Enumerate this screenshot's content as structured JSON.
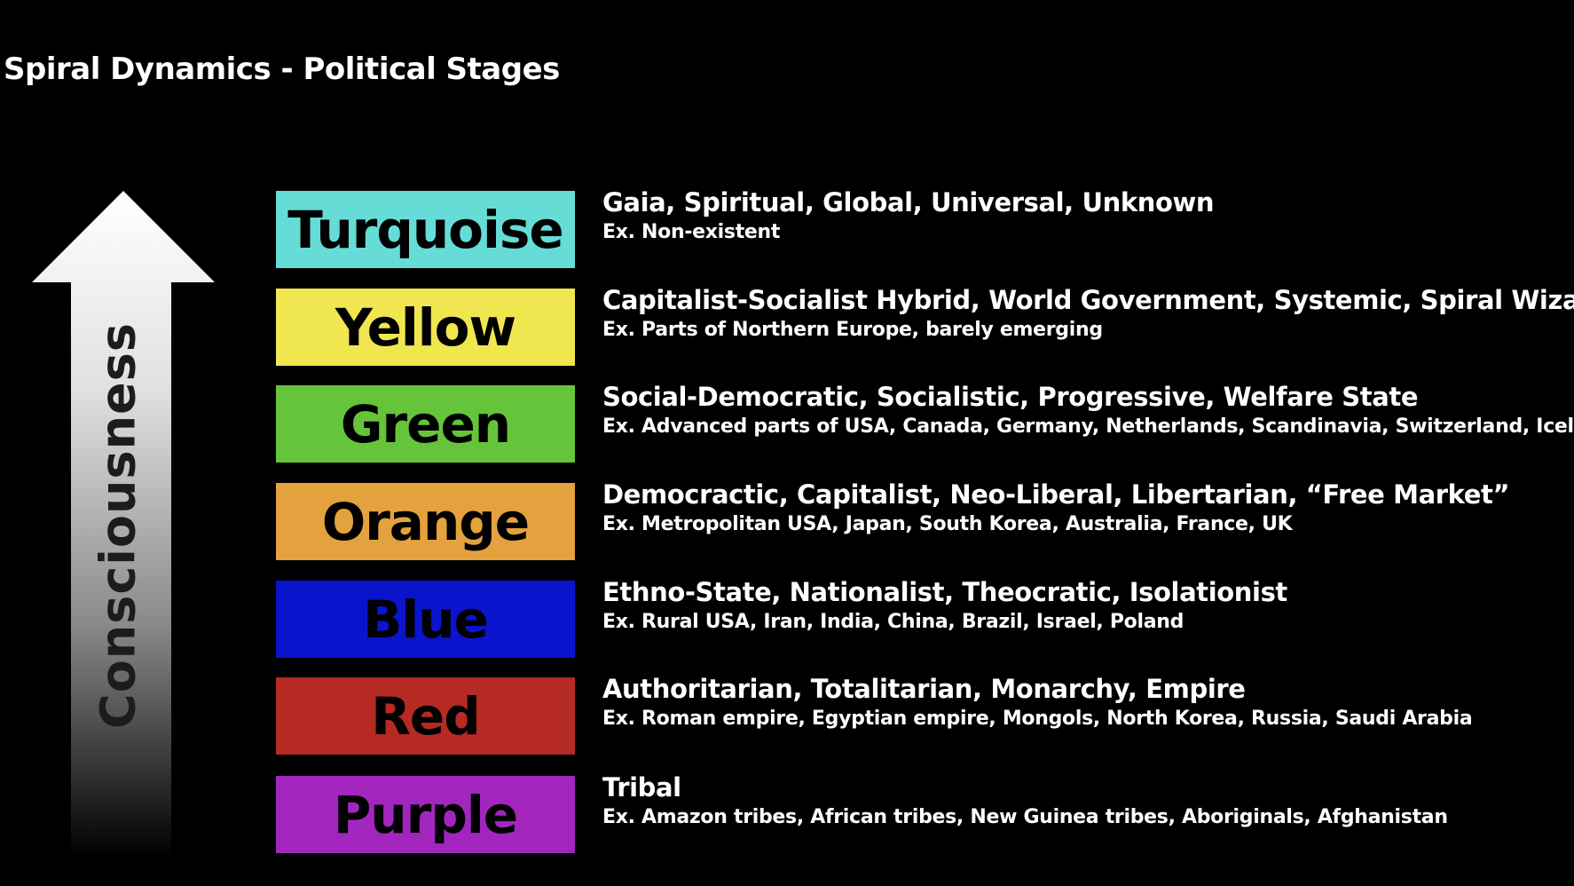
{
  "title": "Spiral Dynamics - Political Stages",
  "axis_label": "Consciousness",
  "stages": [
    {
      "name": "Turquoise",
      "color": "#66dcd6",
      "description": "Gaia, Spiritual, Global, Universal, Unknown",
      "examples": "Ex. Non-existent"
    },
    {
      "name": "Yellow",
      "color": "#f0e64f",
      "description": "Capitalist-Socialist Hybrid, World Government, Systemic, Spiral Wizardry",
      "examples": "Ex. Parts of Northern Europe, barely emerging"
    },
    {
      "name": "Green",
      "color": "#66c43a",
      "description": "Social-Democratic, Socialistic, Progressive, Welfare State",
      "examples": "Ex. Advanced parts of USA, Canada, Germany, Netherlands, Scandinavia, Switzerland, Iceland"
    },
    {
      "name": "Orange",
      "color": "#e3a23d",
      "description": "Democractic, Capitalist, Neo-Liberal, Libertarian, “Free Market”",
      "examples": "Ex. Metropolitan USA, Japan, South Korea, Australia, France, UK"
    },
    {
      "name": "Blue",
      "color": "#0a14cc",
      "description": "Ethno-State, Nationalist, Theocratic, Isolationist",
      "examples": "Ex. Rural USA, Iran, India, China, Brazil, Israel, Poland"
    },
    {
      "name": "Red",
      "color": "#b52a22",
      "description": "Authoritarian, Totalitarian, Monarchy, Empire",
      "examples": "Ex. Roman empire, Egyptian empire, Mongols, North Korea, Russia, Saudi Arabia"
    },
    {
      "name": "Purple",
      "color": "#a226be",
      "description": "Tribal",
      "examples": "Ex. Amazon tribes, African tribes, New Guinea tribes, Aboriginals, Afghanistan"
    }
  ]
}
